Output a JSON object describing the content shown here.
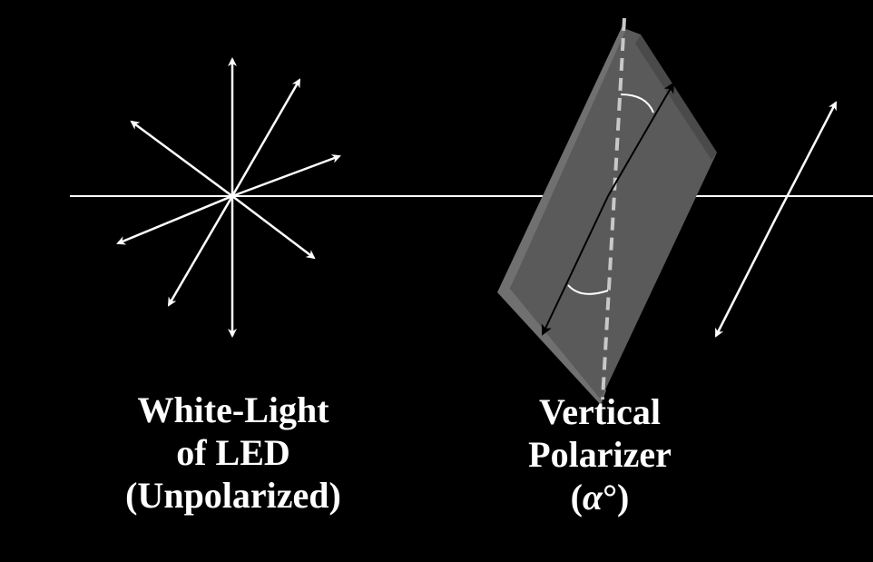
{
  "captions": {
    "source": {
      "line1": "White-Light",
      "line2": "of LED",
      "line3": "(Unpolarized)"
    },
    "polarizer": {
      "line1": "Vertical",
      "line2": "Polarizer",
      "line3_open": "(",
      "line3_symbol": "α",
      "line3_close": "°)"
    }
  },
  "colors": {
    "background": "#000000",
    "lines": "#ffffff",
    "polarizer_face": "#5e5e5e",
    "polarizer_edge": "#707070",
    "axis_dashes": "#c8c8c8"
  },
  "icons": {
    "source_rays": "unpolarized-starburst-icon",
    "polarizer": "polarizer-plate-icon",
    "output_ray": "polarized-double-arrow-icon"
  }
}
